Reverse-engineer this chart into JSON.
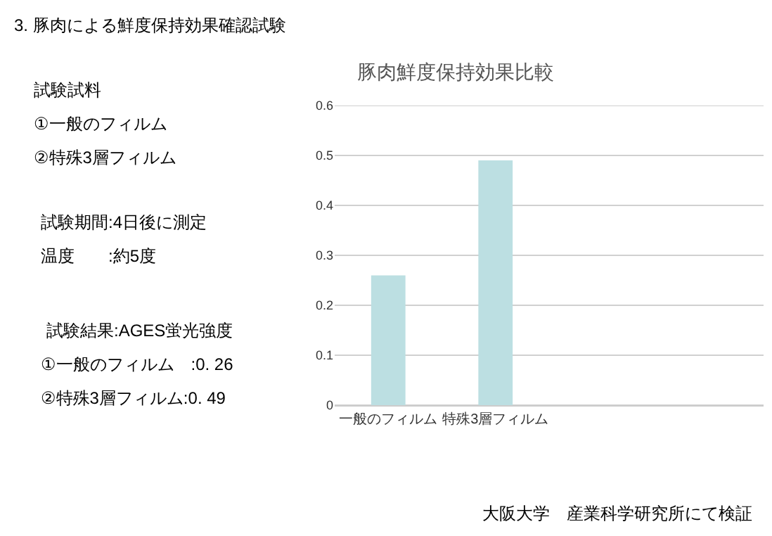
{
  "chart_data": {
    "type": "bar",
    "title": "3. 豚肉による鮮度保持効果確認試験",
    "subtitle": "豚肉鮮度保持効果比較",
    "categories": [
      "一般のフィルム",
      "特殊3層フィルム",
      null,
      null
    ],
    "values": [
      0.26,
      0.49,
      null,
      null
    ],
    "color": "#bcdfe2",
    "ylim": [
      0,
      0.6
    ],
    "yticks": [
      0,
      0.1,
      0.2,
      0.3,
      0.4,
      0.5,
      0.6
    ],
    "grid": "y",
    "annotations": [
      "試験試料",
      "①一般のフィルム",
      "②特殊3層フィルム",
      "試験期間:4日後に測定",
      "温度　　:約5度",
      "試験結果:AGES蛍光強度",
      "①一般のフィルム　:0. 26",
      "②特殊3層フィルム:0. 49",
      "大阪大学　産業科学研究所にて検証"
    ]
  }
}
